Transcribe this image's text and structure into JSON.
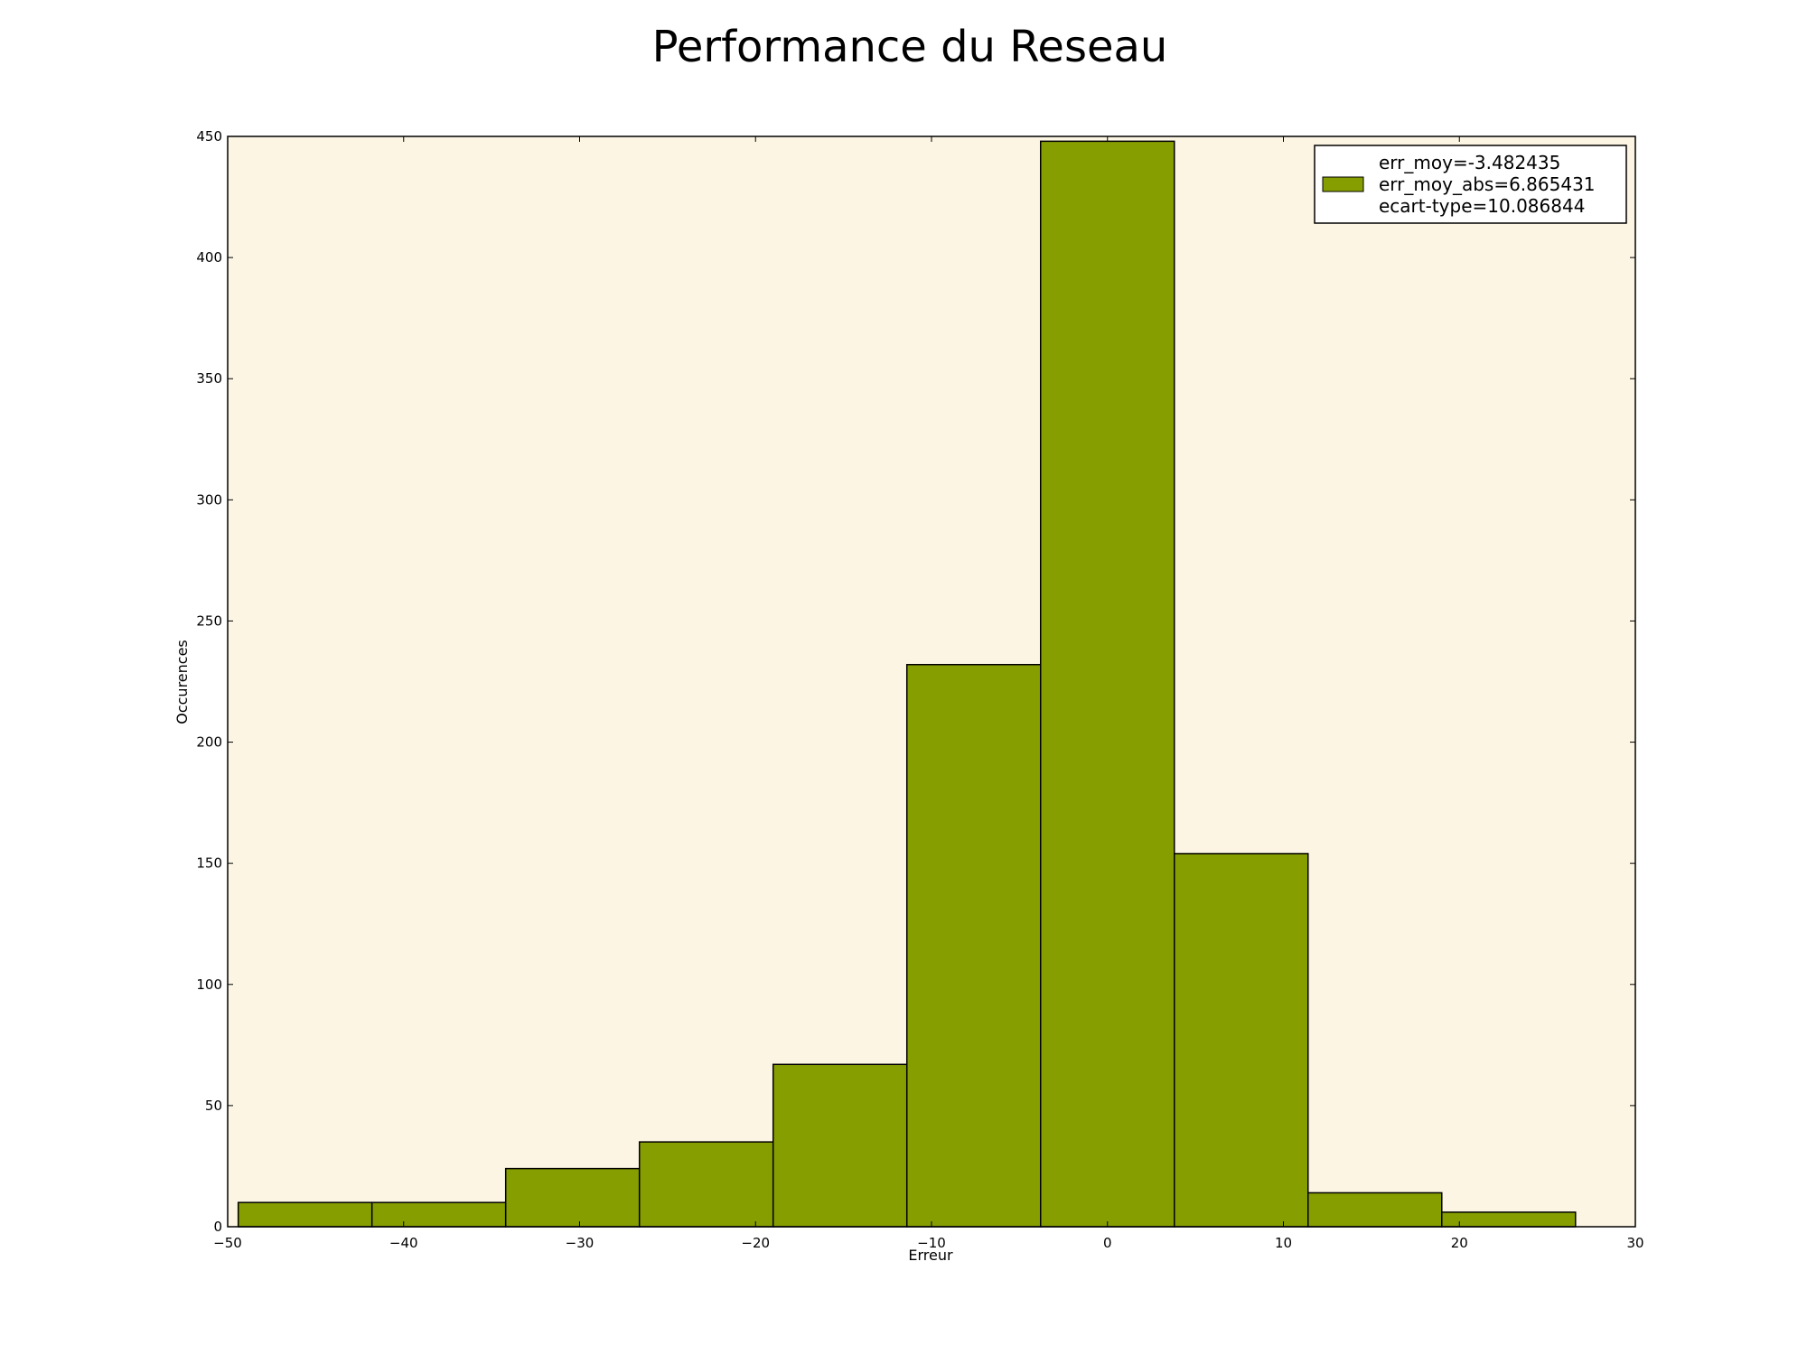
{
  "chart_data": {
    "type": "bar",
    "title": "Performance du Reseau",
    "xlabel": "Erreur",
    "ylabel": "Occurences",
    "xlim": [
      -50,
      30
    ],
    "ylim": [
      0,
      450
    ],
    "xticks": [
      -50,
      -40,
      -30,
      -20,
      -10,
      0,
      10,
      20,
      30
    ],
    "xtick_labels": [
      "−50",
      "−40",
      "−30",
      "−20",
      "−10",
      "0",
      "10",
      "20",
      "30"
    ],
    "yticks": [
      0,
      50,
      100,
      150,
      200,
      250,
      300,
      350,
      400,
      450
    ],
    "ytick_labels": [
      "0",
      "50",
      "100",
      "150",
      "200",
      "250",
      "300",
      "350",
      "400",
      "450"
    ],
    "bin_edges": [
      -49.4,
      -41.8,
      -34.2,
      -26.6,
      -19.0,
      -11.4,
      -3.8,
      3.8,
      11.4,
      19.0,
      26.6
    ],
    "values": [
      10,
      10,
      24,
      35,
      67,
      232,
      448,
      154,
      14,
      6
    ],
    "legend": {
      "placement": "top-right",
      "lines": [
        "err_moy=-3.482435",
        "err_moy_abs=6.865431",
        "ecart-type=10.086844"
      ]
    },
    "grid": false,
    "colors": {
      "bar_fill": "#879e00",
      "bar_edge": "#000000",
      "plot_background": "#fcf5e3",
      "figure_background": "#ffffff"
    }
  }
}
